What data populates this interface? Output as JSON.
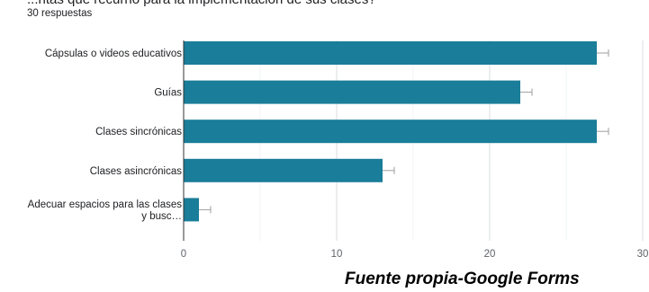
{
  "question": {
    "title": "...ntas que recurrió para la implementación de sus clases?",
    "responses": "30 respuestas"
  },
  "chart_data": {
    "type": "bar",
    "orientation": "horizontal",
    "categories": [
      [
        "Cápsulas o videos educativos"
      ],
      [
        "Guías"
      ],
      [
        "Clases sincrónicas"
      ],
      [
        "Clases asincrónicas"
      ],
      [
        "Adecuar espacios para las clases",
        "y busc…"
      ]
    ],
    "values": [
      27,
      22,
      27,
      13,
      1
    ],
    "xlim": [
      0,
      30
    ],
    "xticks": [
      "0",
      "10",
      "20",
      "30"
    ],
    "grid": true,
    "bar_color": "#1a7d99"
  },
  "footer": {
    "source": "Fuente propia-Google Forms"
  }
}
